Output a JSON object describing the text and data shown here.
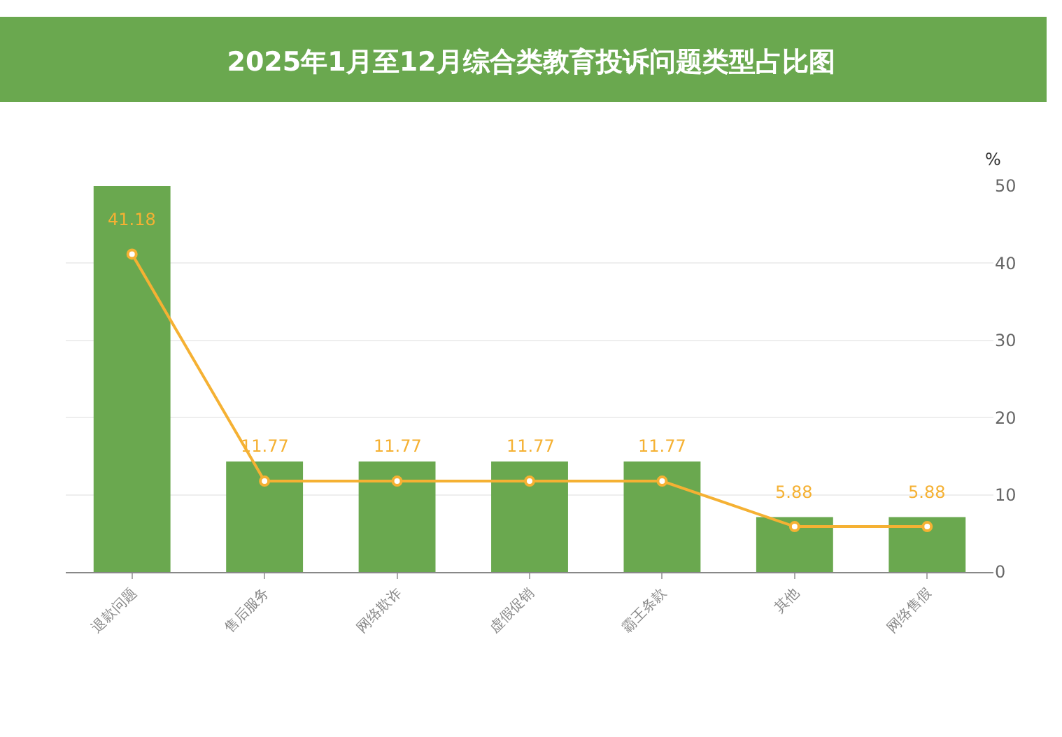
{
  "chart_data": {
    "type": "bar",
    "title": "2025年1月至12月综合类教育投诉问题类型占比图",
    "ylabel": "%",
    "categories": [
      "退款问题",
      "售后服务",
      "网络欺诈",
      "虚假促销",
      "霸王条款",
      "其他",
      "网络售假"
    ],
    "series": [
      {
        "color": "#6aa84f",
        "values": [
          50,
          14.3,
          14.3,
          14.3,
          14.3,
          7.1,
          7.1
        ]
      },
      {
        "type": "line",
        "color": "#f5b133",
        "values": [
          41.18,
          11.77,
          11.77,
          11.77,
          11.77,
          5.88,
          5.88
        ],
        "value_labels": [
          "41.18",
          "11.77",
          "11.77",
          "11.77",
          "11.77",
          "5.88",
          "5.88"
        ],
        "marker": "circle"
      }
    ],
    "ylim": [
      0,
      50
    ],
    "yticks": [
      0,
      10,
      20,
      30,
      40,
      50
    ],
    "grid": "y",
    "legend": false
  }
}
